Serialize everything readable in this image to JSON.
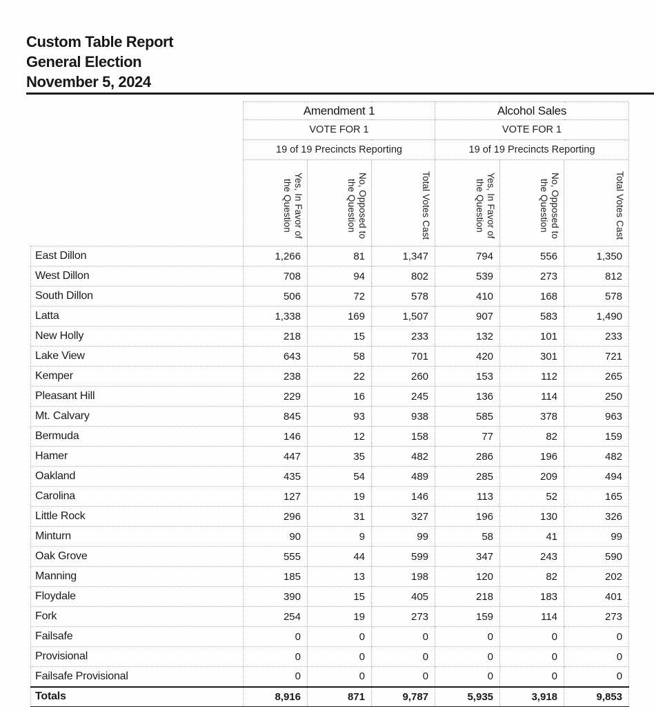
{
  "report": {
    "title": "Custom Table Report",
    "subtitle": "General Election",
    "date": "November 5, 2024"
  },
  "colors": {
    "text": "#1d1d1d",
    "grid": "#b3b3b3",
    "rule": "#1b1b1b",
    "paper": "#fefefe"
  },
  "table": {
    "questions": [
      {
        "title": "Amendment 1",
        "vote_for": "VOTE FOR 1",
        "precincts_reporting": "19 of 19 Precincts Reporting"
      },
      {
        "title": "Alcohol Sales",
        "vote_for": "VOTE FOR 1",
        "precincts_reporting": "19 of 19 Precincts Reporting"
      }
    ],
    "column_headers": [
      {
        "lines": [
          "Yes, In Favor of",
          "the Question"
        ]
      },
      {
        "lines": [
          "No, Opposed to",
          "the Question"
        ]
      },
      {
        "lines": [
          "Total Votes Cast"
        ]
      }
    ],
    "rows": [
      {
        "precinct": "East Dillon",
        "values": [
          "1,266",
          "81",
          "1,347",
          "794",
          "556",
          "1,350"
        ]
      },
      {
        "precinct": "West Dillon",
        "values": [
          "708",
          "94",
          "802",
          "539",
          "273",
          "812"
        ]
      },
      {
        "precinct": "South Dillon",
        "values": [
          "506",
          "72",
          "578",
          "410",
          "168",
          "578"
        ]
      },
      {
        "precinct": "Latta",
        "values": [
          "1,338",
          "169",
          "1,507",
          "907",
          "583",
          "1,490"
        ]
      },
      {
        "precinct": "New Holly",
        "values": [
          "218",
          "15",
          "233",
          "132",
          "101",
          "233"
        ]
      },
      {
        "precinct": "Lake View",
        "values": [
          "643",
          "58",
          "701",
          "420",
          "301",
          "721"
        ]
      },
      {
        "precinct": "Kemper",
        "values": [
          "238",
          "22",
          "260",
          "153",
          "112",
          "265"
        ]
      },
      {
        "precinct": "Pleasant Hill",
        "values": [
          "229",
          "16",
          "245",
          "136",
          "114",
          "250"
        ]
      },
      {
        "precinct": "Mt. Calvary",
        "values": [
          "845",
          "93",
          "938",
          "585",
          "378",
          "963"
        ]
      },
      {
        "precinct": "Bermuda",
        "values": [
          "146",
          "12",
          "158",
          "77",
          "82",
          "159"
        ]
      },
      {
        "precinct": "Hamer",
        "values": [
          "447",
          "35",
          "482",
          "286",
          "196",
          "482"
        ]
      },
      {
        "precinct": "Oakland",
        "values": [
          "435",
          "54",
          "489",
          "285",
          "209",
          "494"
        ]
      },
      {
        "precinct": "Carolina",
        "values": [
          "127",
          "19",
          "146",
          "113",
          "52",
          "165"
        ]
      },
      {
        "precinct": "Little Rock",
        "values": [
          "296",
          "31",
          "327",
          "196",
          "130",
          "326"
        ]
      },
      {
        "precinct": "Minturn",
        "values": [
          "90",
          "9",
          "99",
          "58",
          "41",
          "99"
        ]
      },
      {
        "precinct": "Oak Grove",
        "values": [
          "555",
          "44",
          "599",
          "347",
          "243",
          "590"
        ]
      },
      {
        "precinct": "Manning",
        "values": [
          "185",
          "13",
          "198",
          "120",
          "82",
          "202"
        ]
      },
      {
        "precinct": "Floydale",
        "values": [
          "390",
          "15",
          "405",
          "218",
          "183",
          "401"
        ]
      },
      {
        "precinct": "Fork",
        "values": [
          "254",
          "19",
          "273",
          "159",
          "114",
          "273"
        ]
      },
      {
        "precinct": "Failsafe",
        "values": [
          "0",
          "0",
          "0",
          "0",
          "0",
          "0"
        ]
      },
      {
        "precinct": "Provisional",
        "values": [
          "0",
          "0",
          "0",
          "0",
          "0",
          "0"
        ]
      },
      {
        "precinct": "Failsafe Provisional",
        "values": [
          "0",
          "0",
          "0",
          "0",
          "0",
          "0"
        ]
      }
    ],
    "totals": {
      "label": "Totals",
      "values": [
        "8,916",
        "871",
        "9,787",
        "5,935",
        "3,918",
        "9,853"
      ]
    }
  }
}
